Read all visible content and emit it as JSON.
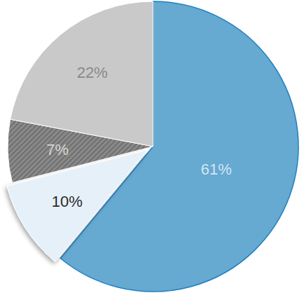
{
  "chart_data": {
    "type": "pie",
    "values": [
      61,
      10,
      7,
      22
    ],
    "value_labels": [
      "61%",
      "10%",
      "7%",
      "22%"
    ],
    "colors": [
      "#66a9d1",
      "#e6f0f8",
      "#8a8a8a",
      "#c9c9c9"
    ],
    "data_labels": true
  }
}
